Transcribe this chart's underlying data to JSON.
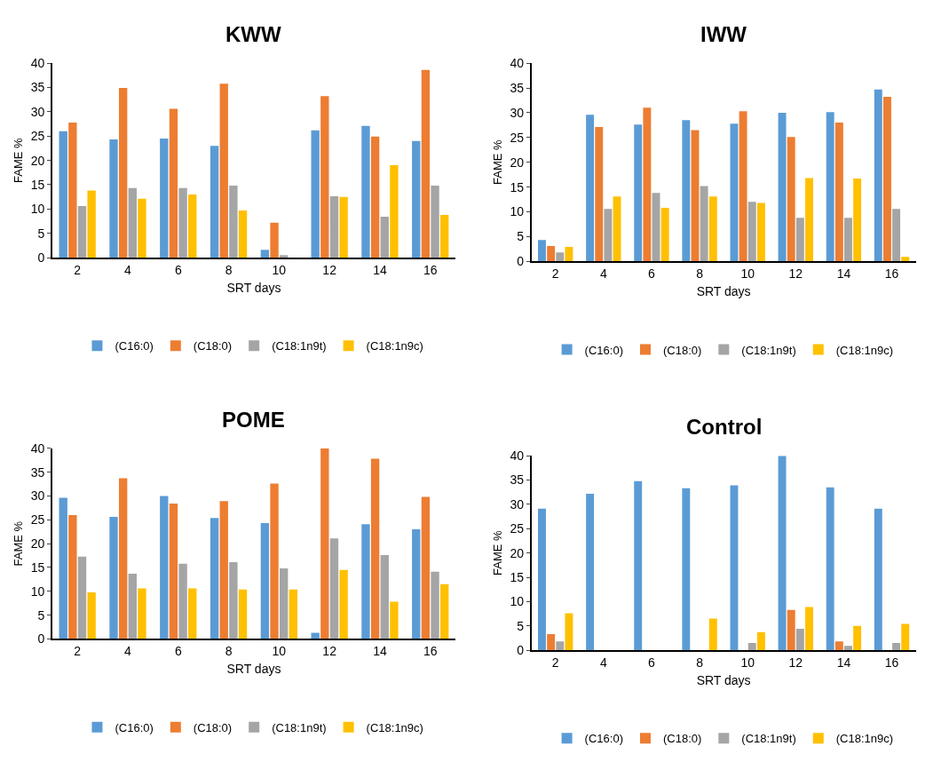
{
  "chart_data": [
    {
      "type": "bar",
      "title": "KWW",
      "xlabel": "SRT days",
      "ylabel": "FAME %",
      "categories": [
        "2",
        "4",
        "6",
        "8",
        "10",
        "12",
        "14",
        "16"
      ],
      "ylim": [
        0,
        40
      ],
      "yticks": [
        0,
        5,
        10,
        15,
        20,
        25,
        30,
        35,
        40
      ],
      "legend": "bottom",
      "series": [
        {
          "name": "(C16:0)",
          "color": "#5b9bd5",
          "values": [
            26,
            24.3,
            24.5,
            23,
            1.6,
            26.2,
            27.1,
            24
          ]
        },
        {
          "name": "(C18:0)",
          "color": "#ed7d31",
          "values": [
            27.8,
            34.9,
            30.6,
            35.8,
            7.2,
            33.2,
            24.9,
            38.6
          ]
        },
        {
          "name": "(C18:1n9t)",
          "color": "#a5a5a5",
          "values": [
            10.6,
            14.3,
            14.3,
            14.8,
            0.5,
            12.6,
            8.4,
            14.8
          ]
        },
        {
          "name": "(C18:1n9c)",
          "color": "#ffc000",
          "values": [
            13.8,
            12.1,
            13,
            9.7,
            0,
            12.5,
            19,
            8.8
          ]
        }
      ]
    },
    {
      "type": "bar",
      "title": "IWW",
      "xlabel": "SRT days",
      "ylabel": "FAME %",
      "categories": [
        "2",
        "4",
        "6",
        "8",
        "10",
        "12",
        "14",
        "16"
      ],
      "ylim": [
        0,
        40
      ],
      "yticks": [
        0,
        5,
        10,
        15,
        20,
        25,
        30,
        35,
        40
      ],
      "legend": "bottom",
      "series": [
        {
          "name": "(C16:0)",
          "color": "#5b9bd5",
          "values": [
            4.3,
            29.6,
            27.6,
            28.5,
            27.8,
            30,
            30.1,
            34.7
          ]
        },
        {
          "name": "(C18:0)",
          "color": "#ed7d31",
          "values": [
            3.1,
            27.1,
            31,
            26.5,
            30.3,
            25.1,
            28,
            33.2
          ]
        },
        {
          "name": "(C18:1n9t)",
          "color": "#a5a5a5",
          "values": [
            1.8,
            10.6,
            13.8,
            15.2,
            12,
            8.8,
            8.8,
            10.6
          ]
        },
        {
          "name": "(C18:1n9c)",
          "color": "#ffc000",
          "values": [
            2.9,
            13.1,
            10.8,
            13.1,
            11.8,
            16.8,
            16.7,
            0.9
          ]
        }
      ]
    },
    {
      "type": "bar",
      "title": "POME",
      "xlabel": "SRT days",
      "ylabel": "FAME %",
      "categories": [
        "2",
        "4",
        "6",
        "8",
        "10",
        "12",
        "14",
        "16"
      ],
      "ylim": [
        0,
        40
      ],
      "yticks": [
        0,
        5,
        10,
        15,
        20,
        25,
        30,
        35,
        40
      ],
      "legend": "bottom",
      "series": [
        {
          "name": "(C16:0)",
          "color": "#5b9bd5",
          "values": [
            29.6,
            25.6,
            30,
            25.4,
            24.3,
            1.3,
            24.1,
            23
          ]
        },
        {
          "name": "(C18:0)",
          "color": "#ed7d31",
          "values": [
            26,
            33.7,
            28.4,
            28.9,
            32.6,
            40,
            37.8,
            29.8
          ]
        },
        {
          "name": "(C18:1n9t)",
          "color": "#a5a5a5",
          "values": [
            17.3,
            13.7,
            15.8,
            16.1,
            14.8,
            21.1,
            17.6,
            14.1
          ]
        },
        {
          "name": "(C18:1n9c)",
          "color": "#ffc000",
          "values": [
            9.8,
            10.6,
            10.6,
            10.4,
            10.4,
            14.5,
            7.8,
            11.5
          ]
        }
      ]
    },
    {
      "type": "bar",
      "title": "Control",
      "xlabel": "SRT days",
      "ylabel": "FAME %",
      "categories": [
        "2",
        "4",
        "6",
        "8",
        "10",
        "12",
        "14",
        "16"
      ],
      "ylim": [
        0,
        40
      ],
      "yticks": [
        0,
        5,
        10,
        15,
        20,
        25,
        30,
        35,
        40
      ],
      "legend": "bottom",
      "series": [
        {
          "name": "(C16:0)",
          "color": "#5b9bd5",
          "values": [
            29.1,
            32.2,
            34.8,
            33.3,
            33.9,
            40,
            33.5,
            29.1
          ]
        },
        {
          "name": "(C18:0)",
          "color": "#ed7d31",
          "values": [
            3.3,
            0,
            0,
            0,
            0,
            8.3,
            1.8,
            0
          ]
        },
        {
          "name": "(C18:1n9t)",
          "color": "#a5a5a5",
          "values": [
            1.8,
            0,
            0,
            0,
            1.5,
            4.4,
            0.9,
            1.5
          ]
        },
        {
          "name": "(C18:1n9c)",
          "color": "#ffc000",
          "values": [
            7.6,
            0,
            0,
            6.5,
            3.7,
            8.9,
            5,
            5.4
          ]
        }
      ]
    }
  ]
}
